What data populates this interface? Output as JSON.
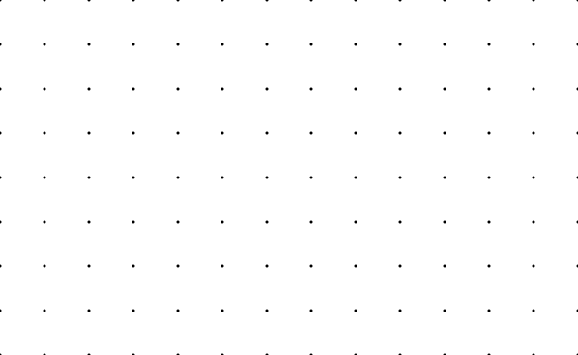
{
  "canvas": {
    "background": "#ffffff",
    "pattern": "dot-grid",
    "dot_color": "#000000"
  }
}
